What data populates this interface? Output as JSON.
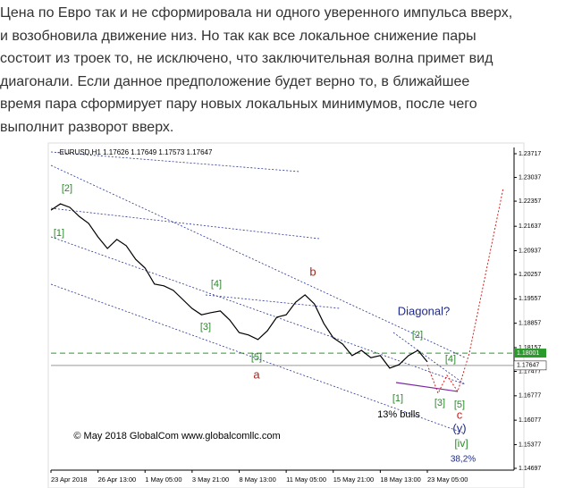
{
  "article": {
    "paragraph_lines": [
      "Цена по Евро так и не сформировала ни одного уверенного импульса вверх,",
      "и возобновила движение низ. Но так как все локальное снижение пары",
      "состоит из троек то, не исключено, что заключительная волна примет вид",
      "диагонали. Если данное предположение будет верно то, в ближайшее",
      "время пара сформирует пару новых локальных минимумов, после чего",
      "выполнит разворот вверх."
    ]
  },
  "chart_data": {
    "type": "line",
    "header": "-EURUSD,H1  1.17626 1.17649 1.17573 1.17647",
    "categories": [
      "23 Apr 2018",
      null,
      null,
      null,
      null,
      "26 Apr 13:00",
      null,
      null,
      null,
      null,
      "1 May 05:00",
      null,
      null,
      null,
      null,
      "3 May 21:00",
      null,
      null,
      null,
      null,
      "8 May 13:00",
      null,
      null,
      null,
      null,
      "11 May 05:00",
      null,
      null,
      null,
      null,
      "15 May 21:00",
      null,
      null,
      null,
      null,
      "18 May 13:00",
      null,
      null,
      null,
      null,
      "23 May 05:00"
    ],
    "values": [
      1.221,
      1.2228,
      1.2218,
      1.2192,
      1.2172,
      1.2133,
      1.21,
      1.2126,
      1.2108,
      1.2069,
      1.2044,
      1.1998,
      1.1993,
      1.198,
      1.1954,
      1.1928,
      1.191,
      1.1916,
      1.1921,
      1.1895,
      1.1859,
      1.1852,
      1.1839,
      1.1864,
      1.1903,
      1.191,
      1.1946,
      1.1967,
      1.1941,
      1.1885,
      1.1844,
      1.1826,
      1.1793,
      1.1808,
      1.1787,
      1.1793,
      1.1757,
      1.1767,
      1.1793,
      1.1808,
      1.1775
    ],
    "color": "#000000",
    "ylim": [
      1.14697,
      1.23717
    ],
    "yticks": [
      1.23717,
      1.23037,
      1.22357,
      1.21637,
      1.20937,
      1.20257,
      1.19557,
      1.18857,
      1.18157,
      1.17477,
      1.16777,
      1.16077,
      1.15377,
      1.14697
    ],
    "levels": [
      {
        "value": 1.18001,
        "color": "#2a9a2a"
      },
      {
        "value": 1.17647,
        "color": "#999999"
      }
    ],
    "annotations": [
      {
        "text": "[2]",
        "color": "#2a8a2a"
      },
      {
        "text": "[1]",
        "color": "#2a8a2a"
      },
      {
        "text": "[4]",
        "color": "#2a8a2a"
      },
      {
        "text": "[3]",
        "color": "#2a8a2a"
      },
      {
        "text": "[5]",
        "color": "#2a8a2a"
      },
      {
        "text": "a",
        "color": "#a0281e"
      },
      {
        "text": "b",
        "color": "#a0281e"
      },
      {
        "text": "Diagonal?",
        "color": "#1e2a8a"
      },
      {
        "text": "[2]",
        "color": "#2a8a2a"
      },
      {
        "text": "[4]",
        "color": "#2a8a2a"
      },
      {
        "text": "[1]",
        "color": "#2a8a2a"
      },
      {
        "text": "[3]",
        "color": "#2a8a2a"
      },
      {
        "text": "[5]",
        "color": "#2a8a2a"
      },
      {
        "text": "13% bulls",
        "color": "#000000"
      },
      {
        "text": "c",
        "color": "#c81e1e"
      },
      {
        "text": "(y)",
        "color": "#1e2a8a"
      },
      {
        "text": "[iv]",
        "color": "#2a8a2a"
      },
      {
        "text": "38,2%",
        "color": "#1e2a8a"
      },
      {
        "text": "© May 2018 GlobalCom www.globalcomllc.com",
        "color": "#000000"
      }
    ]
  }
}
